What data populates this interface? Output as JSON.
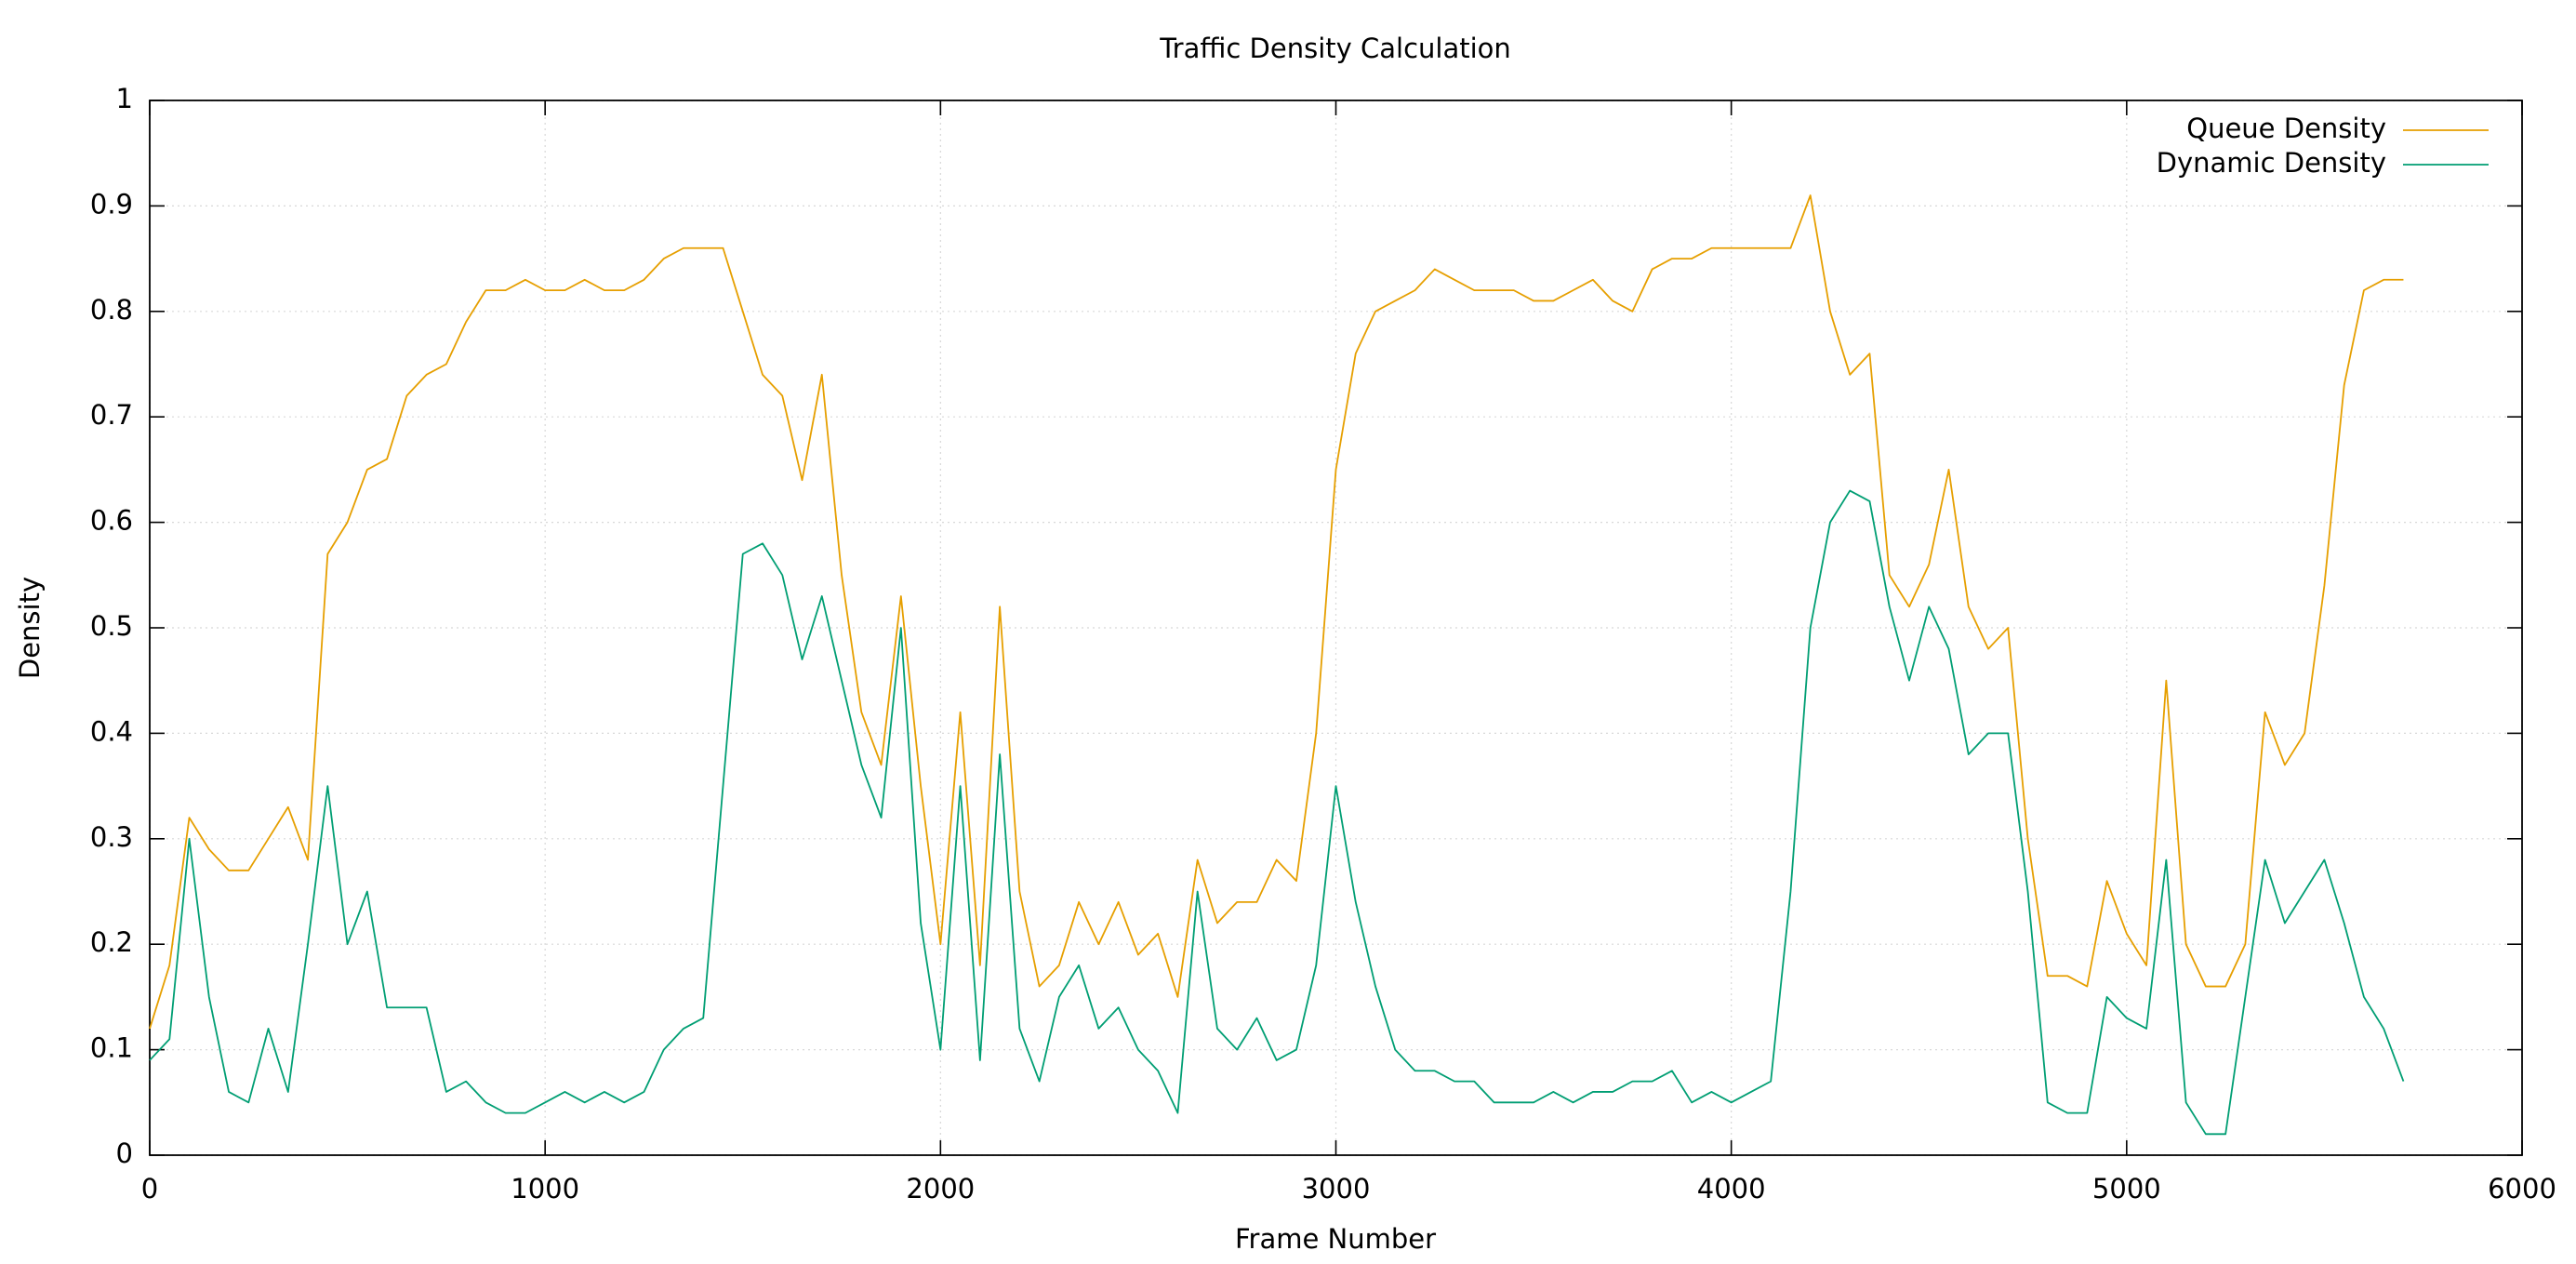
{
  "chart_data": {
    "type": "line",
    "title": "Traffic Density Calculation",
    "x_label": "Frame Number",
    "y_label": "Density",
    "xlim": [
      0,
      6000
    ],
    "xticks": [
      0,
      1000,
      2000,
      3000,
      4000,
      5000,
      6000
    ],
    "ylim": [
      0,
      1
    ],
    "yticks": [
      0,
      0.1,
      0.2,
      0.3,
      0.4,
      0.5,
      0.6,
      0.7,
      0.8,
      0.9,
      1
    ],
    "grid": true,
    "legend": "top-right",
    "x": [
      0,
      50,
      100,
      150,
      200,
      250,
      300,
      350,
      400,
      450,
      500,
      550,
      600,
      650,
      700,
      750,
      800,
      850,
      900,
      950,
      1000,
      1050,
      1100,
      1150,
      1200,
      1250,
      1300,
      1350,
      1400,
      1450,
      1500,
      1550,
      1600,
      1650,
      1700,
      1750,
      1800,
      1850,
      1900,
      1950,
      2000,
      2050,
      2100,
      2150,
      2200,
      2250,
      2300,
      2350,
      2400,
      2450,
      2500,
      2550,
      2600,
      2650,
      2700,
      2750,
      2800,
      2850,
      2900,
      2950,
      3000,
      3050,
      3100,
      3150,
      3200,
      3250,
      3300,
      3350,
      3400,
      3450,
      3500,
      3550,
      3600,
      3650,
      3700,
      3750,
      3800,
      3850,
      3900,
      3950,
      4000,
      4050,
      4100,
      4150,
      4200,
      4250,
      4300,
      4350,
      4400,
      4450,
      4500,
      4550,
      4600,
      4650,
      4700,
      4750,
      4800,
      4850,
      4900,
      4950,
      5000,
      5050,
      5100,
      5150,
      5200,
      5250,
      5300,
      5350,
      5400,
      5450,
      5500,
      5550,
      5600,
      5650,
      5700
    ],
    "series": [
      {
        "name": "Queue Density",
        "color": "#e69f00",
        "values": [
          0.12,
          0.18,
          0.32,
          0.29,
          0.27,
          0.27,
          0.3,
          0.33,
          0.28,
          0.57,
          0.6,
          0.65,
          0.66,
          0.72,
          0.74,
          0.75,
          0.79,
          0.82,
          0.82,
          0.83,
          0.82,
          0.82,
          0.83,
          0.82,
          0.82,
          0.83,
          0.85,
          0.86,
          0.86,
          0.86,
          0.8,
          0.74,
          0.72,
          0.64,
          0.74,
          0.55,
          0.42,
          0.37,
          0.53,
          0.35,
          0.2,
          0.42,
          0.18,
          0.52,
          0.25,
          0.16,
          0.18,
          0.24,
          0.2,
          0.24,
          0.19,
          0.21,
          0.15,
          0.28,
          0.22,
          0.24,
          0.24,
          0.28,
          0.26,
          0.4,
          0.65,
          0.76,
          0.8,
          0.81,
          0.82,
          0.84,
          0.83,
          0.82,
          0.82,
          0.82,
          0.81,
          0.81,
          0.82,
          0.83,
          0.81,
          0.8,
          0.84,
          0.85,
          0.85,
          0.86,
          0.86,
          0.86,
          0.86,
          0.86,
          0.91,
          0.8,
          0.74,
          0.76,
          0.55,
          0.52,
          0.56,
          0.65,
          0.52,
          0.48,
          0.5,
          0.3,
          0.17,
          0.17,
          0.16,
          0.26,
          0.21,
          0.18,
          0.45,
          0.2,
          0.16,
          0.16,
          0.2,
          0.42,
          0.37,
          0.4,
          0.54,
          0.73,
          0.82,
          0.83,
          0.83
        ]
      },
      {
        "name": "Dynamic Density",
        "color": "#009e73",
        "values": [
          0.09,
          0.11,
          0.3,
          0.15,
          0.06,
          0.05,
          0.12,
          0.06,
          0.2,
          0.35,
          0.2,
          0.25,
          0.14,
          0.14,
          0.14,
          0.06,
          0.07,
          0.05,
          0.04,
          0.04,
          0.05,
          0.06,
          0.05,
          0.06,
          0.05,
          0.06,
          0.1,
          0.12,
          0.13,
          0.35,
          0.57,
          0.58,
          0.55,
          0.47,
          0.53,
          0.45,
          0.37,
          0.32,
          0.5,
          0.22,
          0.1,
          0.35,
          0.09,
          0.38,
          0.12,
          0.07,
          0.15,
          0.18,
          0.12,
          0.14,
          0.1,
          0.08,
          0.04,
          0.25,
          0.12,
          0.1,
          0.13,
          0.09,
          0.1,
          0.18,
          0.35,
          0.24,
          0.16,
          0.1,
          0.08,
          0.08,
          0.07,
          0.07,
          0.05,
          0.05,
          0.05,
          0.06,
          0.05,
          0.06,
          0.06,
          0.07,
          0.07,
          0.08,
          0.05,
          0.06,
          0.05,
          0.06,
          0.07,
          0.25,
          0.5,
          0.6,
          0.63,
          0.62,
          0.52,
          0.45,
          0.52,
          0.48,
          0.38,
          0.4,
          0.4,
          0.25,
          0.05,
          0.04,
          0.04,
          0.15,
          0.13,
          0.12,
          0.28,
          0.05,
          0.02,
          0.02,
          0.15,
          0.28,
          0.22,
          0.25,
          0.28,
          0.22,
          0.15,
          0.12,
          0.07
        ]
      }
    ]
  }
}
